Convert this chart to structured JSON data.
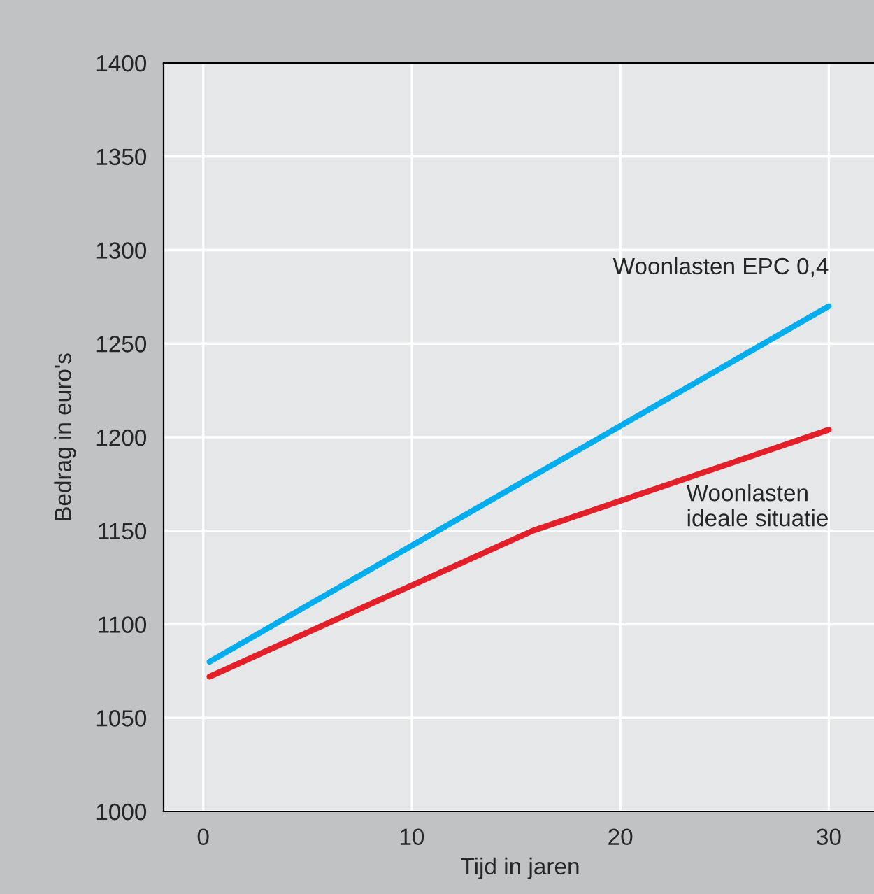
{
  "chart_data": {
    "type": "line",
    "xlabel": "Tijd in jaren",
    "ylabel": "Bedrag in euro's",
    "xlim": [
      -1.9,
      32.3
    ],
    "ylim": [
      1000,
      1400
    ],
    "xticks": [
      0,
      10,
      20,
      30
    ],
    "yticks": [
      1000,
      1050,
      1100,
      1150,
      1200,
      1250,
      1300,
      1350,
      1400
    ],
    "grid": true,
    "legend": false,
    "marker": "none",
    "line_style": "solid",
    "series": [
      {
        "name": "Woonlasten EPC 0,4",
        "color": "#00aeef",
        "x": [
          0.3,
          30
        ],
        "values": [
          1080,
          1270
        ]
      },
      {
        "name": "Woonlasten\nideale situatie",
        "color": "#e3202a",
        "x": [
          0.3,
          15.8,
          30
        ],
        "values": [
          1072,
          1150,
          1204
        ]
      }
    ]
  }
}
